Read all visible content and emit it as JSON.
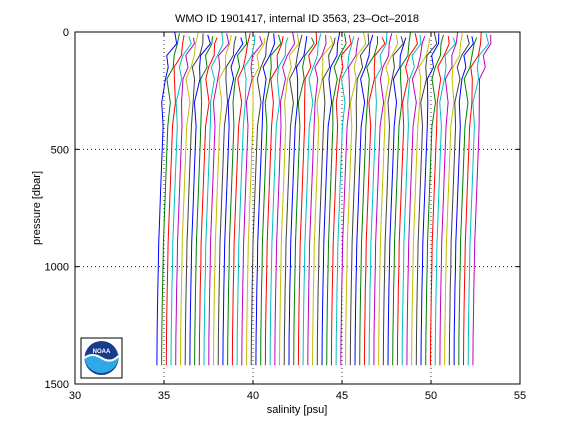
{
  "chart_data": {
    "type": "line",
    "title": "WMO ID 1901417, internal ID 3563, 23–Oct–2018",
    "xlabel": "salinity [psu]",
    "ylabel": "pressure [dbar]",
    "xlim": [
      30,
      55
    ],
    "ylim": [
      0,
      1500
    ],
    "y_reversed": true,
    "x_ticks": [
      30,
      35,
      40,
      45,
      50,
      55
    ],
    "y_ticks": [
      0,
      500,
      1000,
      1500
    ],
    "grid": "dotted",
    "legend": "none",
    "profile_count": 68,
    "first_profile_x_shallow": 35.6,
    "profile_offset_psu": 0.265,
    "profile_depth_max": 1420,
    "profile_shape": {
      "pressure": [
        0,
        50,
        100,
        150,
        200,
        300,
        400,
        500,
        600,
        700,
        800,
        900,
        1000,
        1100,
        1200,
        1300,
        1420
      ],
      "relative_salinity": [
        0.0,
        0.0,
        -0.3,
        -0.45,
        -0.55,
        -0.6,
        -0.65,
        -0.7,
        -0.75,
        -0.8,
        -0.85,
        -0.9,
        -0.92,
        -0.95,
        -0.97,
        -0.99,
        -1.0
      ]
    },
    "colors": [
      "#0000ff",
      "#008000",
      "#ff0000",
      "#00bfbf",
      "#bf00bf",
      "#bfbf00",
      "#404040"
    ]
  },
  "logo": {
    "text": "NOAA"
  }
}
